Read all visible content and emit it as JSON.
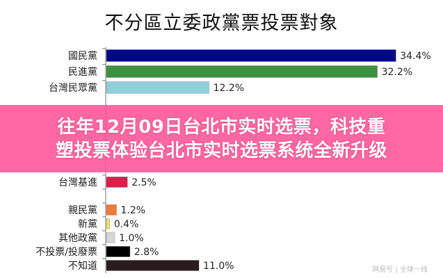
{
  "chart_data": {
    "type": "bar",
    "orientation": "horizontal",
    "title": "不分區立委政黨票投票對象",
    "categories": [
      "國民黨",
      "民進黨",
      "台灣民眾黨",
      "台灣基進",
      "",
      "親民黨",
      "新黨",
      "其他政黨",
      "不投票/投廢票",
      "不知道"
    ],
    "values": [
      34.4,
      32.2,
      12.2,
      2.5,
      null,
      1.2,
      0.4,
      1.0,
      2.8,
      11.0
    ],
    "labels": [
      "34.4%",
      "32.2%",
      "12.2%",
      "2.5%",
      "",
      "1.2%",
      "0.4%",
      "1.0%",
      "2.8%",
      "11.0%"
    ],
    "colors": [
      "#00078a",
      "#3e9141",
      "#8fd0dc",
      "#d7204a",
      "#e03060",
      "#f07a3a",
      "#f3da6a",
      "#d6d6d6",
      "#000000",
      "#2b1d1d"
    ],
    "xlim": [
      0,
      35
    ],
    "grid": false,
    "legend": "none"
  },
  "banner": {
    "line1": "往年12月09日台北市实时选票，科技重",
    "line2": "塑投票体验台北市实时选票系统全新升级",
    "color": "#ff5296"
  },
  "watermark": "网易号 | 全球一线"
}
